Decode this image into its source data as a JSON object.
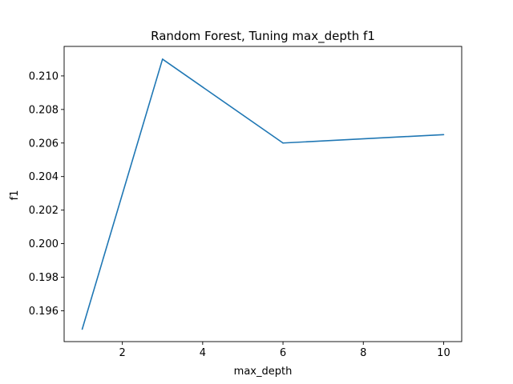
{
  "chart_data": {
    "type": "line",
    "title": "Random Forest, Tuning max_depth f1",
    "xlabel": "max_depth",
    "ylabel": "f1",
    "x": [
      1,
      3,
      6,
      10
    ],
    "series": [
      {
        "values": [
          0.1949,
          0.211,
          0.206,
          0.2065
        ],
        "color": "#1f77b4"
      }
    ],
    "xlim": [
      0.55,
      10.45
    ],
    "ylim": [
      0.19416,
      0.21176
    ],
    "xticks": [
      2,
      4,
      6,
      8,
      10
    ],
    "xtick_labels": [
      "2",
      "4",
      "6",
      "8",
      "10"
    ],
    "yticks": [
      0.196,
      0.198,
      0.2,
      0.202,
      0.204,
      0.206,
      0.208,
      0.21
    ],
    "ytick_labels": [
      "0.196",
      "0.198",
      "0.200",
      "0.202",
      "0.204",
      "0.206",
      "0.208",
      "0.210"
    ],
    "grid": false,
    "legend": false
  }
}
